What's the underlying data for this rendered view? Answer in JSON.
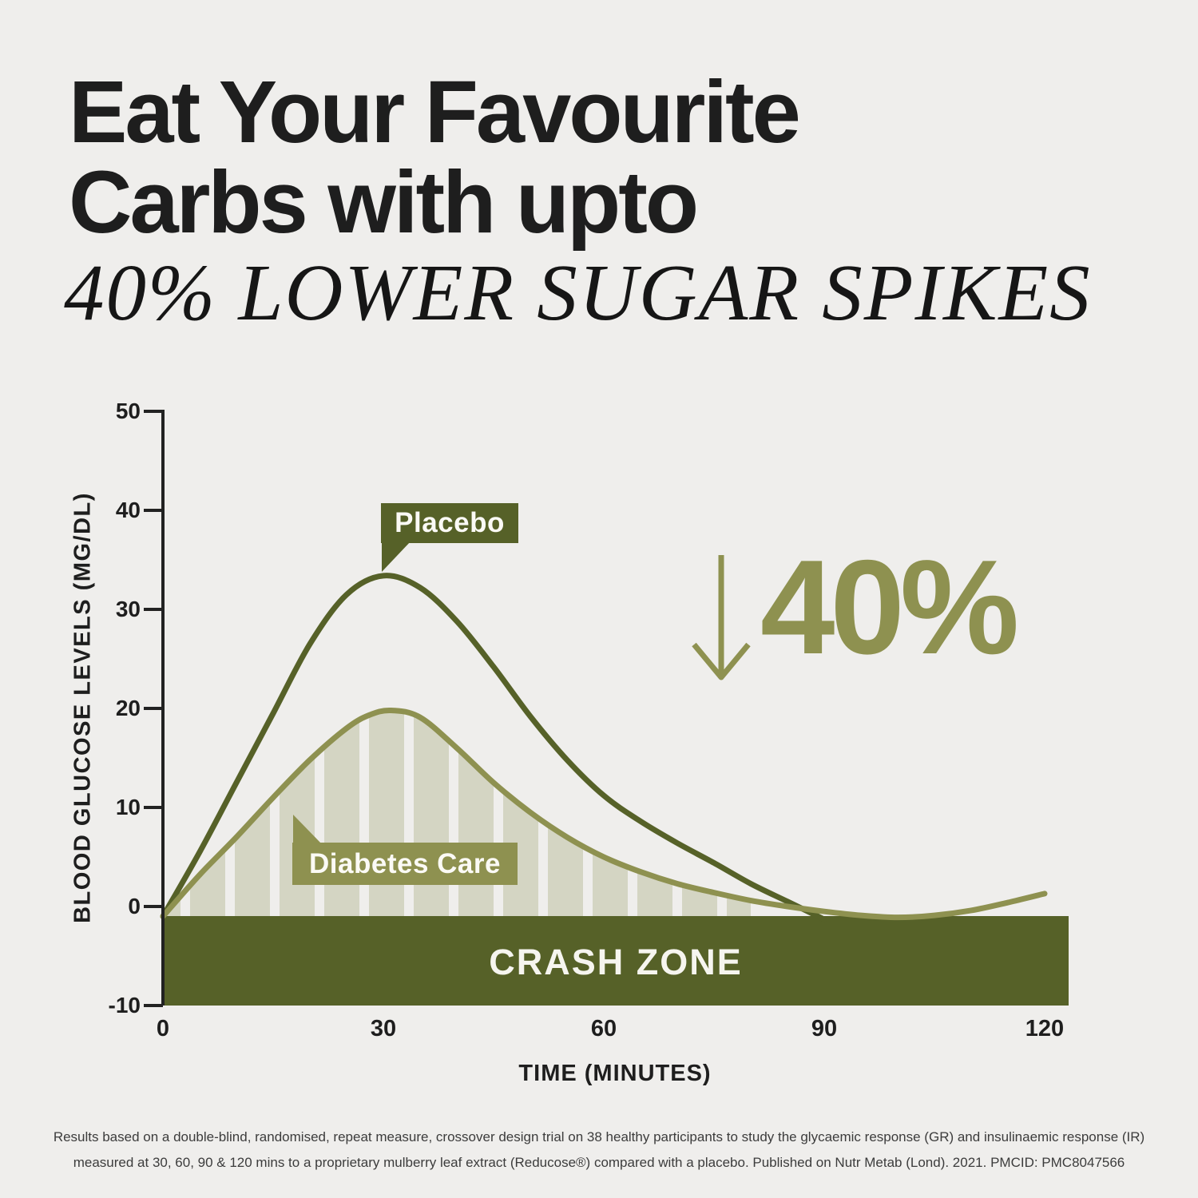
{
  "title": {
    "line1": "Eat Your Favourite",
    "line2": "Carbs with upto",
    "subtitle": "40% LOWER SUGAR SPIKES"
  },
  "chart_data": {
    "type": "line",
    "xlabel": "TIME (MINUTES)",
    "ylabel": "BLOOD GLUCOSE LEVELS (MG/DL)",
    "xlim": [
      0,
      120
    ],
    "ylim": [
      -10,
      50
    ],
    "x_ticks": [
      0,
      30,
      60,
      90,
      120
    ],
    "y_ticks": [
      50,
      40,
      30,
      20,
      10,
      0,
      -10
    ],
    "grid": false,
    "series": [
      {
        "name": "Placebo",
        "color": "#566128",
        "x": [
          0,
          5,
          10,
          15,
          20,
          25,
          30,
          35,
          40,
          45,
          50,
          55,
          60,
          65,
          70,
          75,
          80,
          85,
          90
        ],
        "values": [
          -1,
          5.5,
          12.5,
          19.5,
          26.5,
          31.5,
          33.4,
          32.2,
          28.8,
          24.2,
          19.2,
          14.8,
          11.2,
          8.6,
          6.4,
          4.4,
          2.3,
          0.5,
          -1.3
        ]
      },
      {
        "name": "Diabetes Care",
        "color": "#8e9150",
        "striped_fill": true,
        "x": [
          0,
          5,
          10,
          15,
          20,
          25,
          28,
          31,
          35,
          40,
          45,
          50,
          55,
          60,
          65,
          70,
          75,
          80,
          85,
          90,
          95,
          100,
          105,
          110,
          115,
          120
        ],
        "values": [
          -1,
          3.2,
          7,
          11,
          14.8,
          18,
          19.3,
          19.8,
          19.1,
          16,
          12.5,
          9.5,
          7,
          5,
          3.5,
          2.3,
          1.4,
          0.6,
          0,
          -0.5,
          -0.9,
          -1.1,
          -0.9,
          -0.4,
          0.4,
          1.3
        ]
      }
    ],
    "annotations": {
      "reduction_label": "40%",
      "crash_zone_label": "CRASH ZONE",
      "crash_zone_range": [
        -10,
        -1
      ]
    }
  },
  "colors": {
    "dark_olive": "#566128",
    "light_olive": "#8e9150",
    "stripe": "#d4d5c3",
    "background": "#efeeec",
    "ink": "#1e1e1e"
  },
  "footer": {
    "line1": "Results based on a double-blind, randomised, repeat measure, crossover design trial on 38 healthy participants to study the glycaemic response (GR) and insulinaemic response (IR)",
    "line2": "measured at 30, 60, 90 & 120 mins to a proprietary mulberry leaf extract (Reducose®) compared with a placebo. Published on Nutr Metab (Lond). 2021. PMCID: PMC8047566"
  }
}
